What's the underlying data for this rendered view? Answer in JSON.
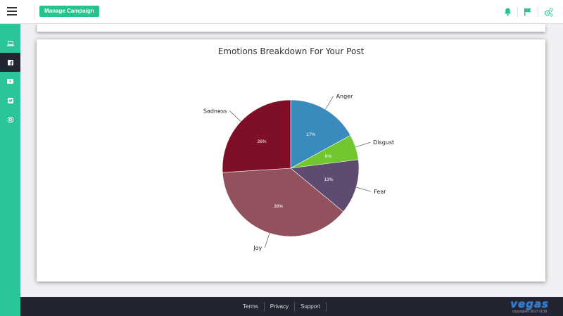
{
  "header": {
    "manage_button": "Manage Campaign",
    "icons": [
      "bell-icon",
      "flag-icon",
      "cogs-icon"
    ],
    "accent": "#26c390"
  },
  "sidebar": {
    "items": [
      {
        "icon": "laptop-icon",
        "active": false
      },
      {
        "icon": "facebook-icon",
        "active": true
      },
      {
        "icon": "youtube-icon",
        "active": false
      },
      {
        "icon": "twitter-icon",
        "active": false
      },
      {
        "icon": "instagram-icon",
        "active": false
      }
    ],
    "bg_color": "#2bc59a",
    "active_color": "#222432"
  },
  "chart_data": {
    "type": "pie",
    "title": "Emotions Breakdown For Your Post",
    "slices": [
      {
        "label": "Anger",
        "value": 17,
        "display": "17%",
        "color": "#3a8bbd"
      },
      {
        "label": "Disgust",
        "value": 6,
        "display": "6%",
        "color": "#72c62e"
      },
      {
        "label": "Fear",
        "value": 13,
        "display": "13%",
        "color": "#5e4b6f"
      },
      {
        "label": "Joy",
        "value": 38,
        "display": "38%",
        "color": "#92525d"
      },
      {
        "label": "Sadness",
        "value": 26,
        "display": "26%",
        "color": "#7e0f27"
      }
    ],
    "start_angle_deg": 0,
    "legend": "none"
  },
  "footer": {
    "links": [
      "Terms",
      "Privacy",
      "Support"
    ],
    "brand": "vegas",
    "copyright": "copyright© 2017-2018"
  }
}
